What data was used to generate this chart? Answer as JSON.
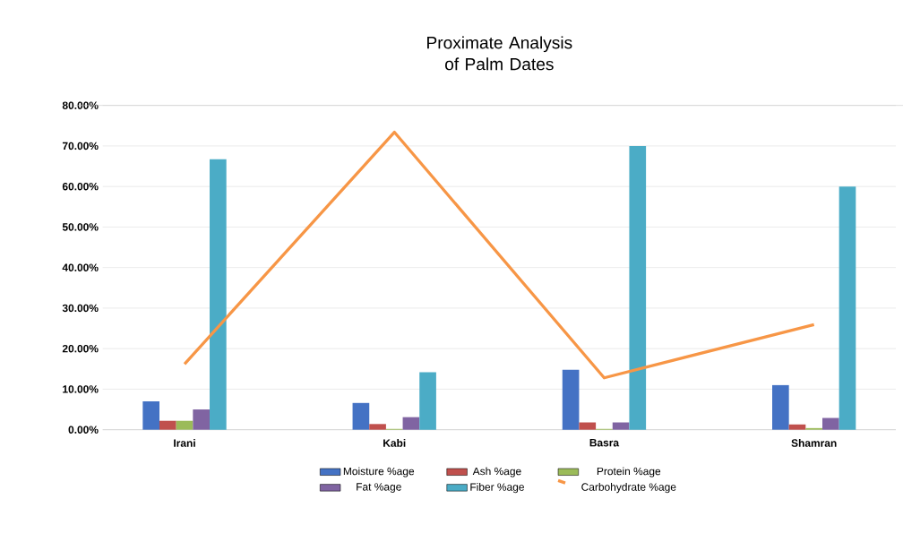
{
  "chart_data": {
    "type": "bar",
    "title": "Proximate Analysis of Palm Dates",
    "categories": [
      "Irani",
      "Kabi",
      "Basra",
      "Shamran"
    ],
    "series": [
      {
        "name": "Moisture %age",
        "color": "#4472c4",
        "values": [
          7.0,
          6.6,
          14.8,
          11.0
        ]
      },
      {
        "name": "Ash %age",
        "color": "#c0504d",
        "values": [
          2.2,
          1.4,
          1.8,
          1.3
        ]
      },
      {
        "name": "Protein %age",
        "color": "#9bbb59",
        "values": [
          2.2,
          0.2,
          0.2,
          0.4
        ]
      },
      {
        "name": "Fat %age",
        "color": "#8064a2",
        "values": [
          5.0,
          3.1,
          1.8,
          2.9
        ]
      },
      {
        "name": "Fiber %age",
        "color": "#4bacc6",
        "values": [
          66.7,
          14.2,
          70.0,
          60.0
        ]
      },
      {
        "name": "Carbohydrate %age",
        "color": "#f79646",
        "type": "line",
        "values": [
          16.2,
          73.4,
          12.8,
          25.9
        ]
      }
    ],
    "ylim": [
      0,
      80
    ],
    "yticks": [
      {
        "value": 0,
        "label": "0.00%"
      },
      {
        "value": 10,
        "label": "10.00%"
      },
      {
        "value": 20,
        "label": "20.00%"
      },
      {
        "value": 30,
        "label": "30.00%"
      },
      {
        "value": 40,
        "label": "40.00%"
      },
      {
        "value": 50,
        "label": "50.00%"
      },
      {
        "value": 60,
        "label": "60.00%"
      },
      {
        "value": 70,
        "label": "70.00%"
      },
      {
        "value": 80,
        "label": "80.00%"
      }
    ],
    "grid": "y",
    "legend": "bottom",
    "marker": "none"
  }
}
